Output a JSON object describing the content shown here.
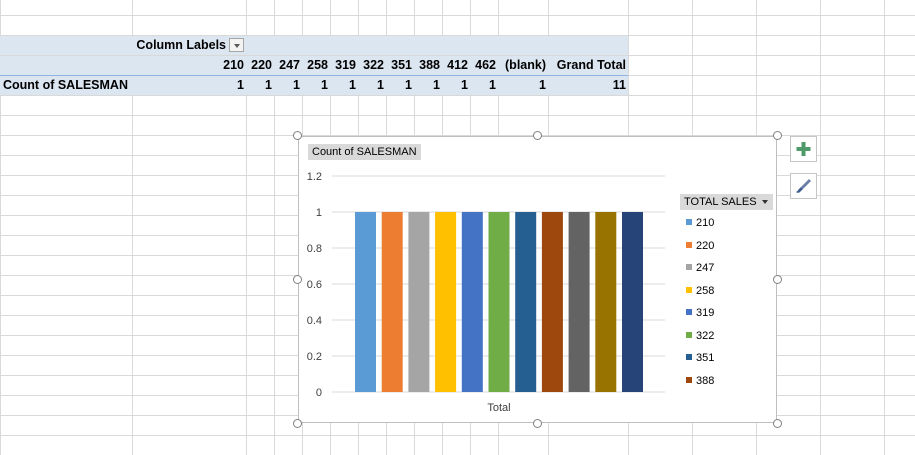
{
  "pivot": {
    "column_labels": "Column Labels",
    "row_label": "Count of SALESMAN",
    "columns": [
      "210",
      "220",
      "247",
      "258",
      "319",
      "322",
      "351",
      "388",
      "412",
      "462",
      "(blank)",
      "Grand Total"
    ],
    "counts": [
      "1",
      "1",
      "1",
      "1",
      "1",
      "1",
      "1",
      "1",
      "1",
      "1",
      "1",
      "11"
    ]
  },
  "chart": {
    "value_field_button": "Count of SALESMAN",
    "legend_field_button": "TOTAL SALES",
    "add_element_icon": "plus-icon",
    "style_icon": "brush-icon"
  },
  "chart_data": {
    "type": "bar",
    "categories": [
      "Total"
    ],
    "xlabel": "Total",
    "ylim": [
      0,
      1.2
    ],
    "yticks": [
      "0",
      "0.2",
      "0.4",
      "0.6",
      "0.8",
      "1",
      "1.2"
    ],
    "grid": true,
    "legend_placement": "right",
    "series": [
      {
        "name": "210",
        "values": [
          1
        ],
        "color": "#5b9bd5"
      },
      {
        "name": "220",
        "values": [
          1
        ],
        "color": "#ed7d31"
      },
      {
        "name": "247",
        "values": [
          1
        ],
        "color": "#a5a5a5"
      },
      {
        "name": "258",
        "values": [
          1
        ],
        "color": "#ffc000"
      },
      {
        "name": "319",
        "values": [
          1
        ],
        "color": "#4472c4"
      },
      {
        "name": "322",
        "values": [
          1
        ],
        "color": "#70ad47"
      },
      {
        "name": "351",
        "values": [
          1
        ],
        "color": "#255e91"
      },
      {
        "name": "388",
        "values": [
          1
        ],
        "color": "#9e480e"
      },
      {
        "name": "412",
        "values": [
          1
        ],
        "color": "#636363"
      },
      {
        "name": "462",
        "values": [
          1
        ],
        "color": "#997300"
      },
      {
        "name": "(blank)",
        "values": [
          1
        ],
        "color": "#264478"
      }
    ],
    "legend_visible": [
      "210",
      "220",
      "247",
      "258",
      "319",
      "322",
      "351",
      "388"
    ]
  }
}
